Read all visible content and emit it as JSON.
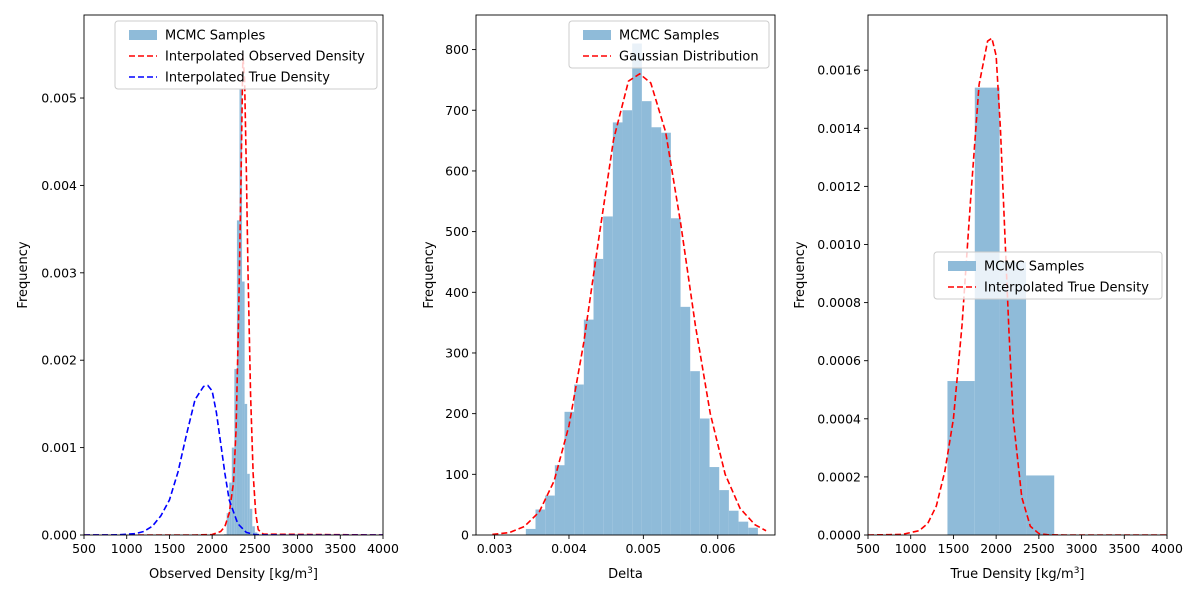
{
  "chart_data": [
    {
      "type": "histogram",
      "xlabel_main": "Observed Density [kg/m",
      "xlabel_sup": "3",
      "xlabel_end": "]",
      "ylabel": "Frequency",
      "xlim": [
        500,
        4000
      ],
      "ylim": [
        0,
        0.00595
      ],
      "xticks": [
        500,
        1000,
        1500,
        2000,
        2500,
        3000,
        3500,
        4000
      ],
      "yticks": [
        0.0,
        0.001,
        0.002,
        0.003,
        0.004,
        0.005
      ],
      "ytick_labels": [
        "0.000",
        "0.001",
        "0.002",
        "0.003",
        "0.004",
        "0.005"
      ],
      "legend": {
        "placement": "upper-center",
        "entries": [
          "MCMC Samples",
          "Interpolated Observed Density",
          "Interpolated True Density"
        ]
      },
      "histogram": {
        "name": "MCMC Samples",
        "color": "#8fbbd9",
        "bin_edges": [
          2140,
          2170,
          2200,
          2230,
          2260,
          2290,
          2320,
          2350,
          2380,
          2410,
          2440,
          2470,
          2500,
          2530
        ],
        "values": [
          1e-05,
          0.00025,
          0.0006,
          0.001,
          0.0019,
          0.0036,
          0.0051,
          0.0029,
          0.0015,
          0.0007,
          0.0003,
          0.0001,
          3e-05
        ]
      },
      "curves": [
        {
          "name": "Interpolated Observed Density",
          "color": "#ff0000",
          "style": "dashed",
          "x": [
            500,
            1800,
            2000,
            2100,
            2150,
            2200,
            2250,
            2280,
            2310,
            2340,
            2360,
            2380,
            2400,
            2420,
            2450,
            2480,
            2510,
            2540,
            2600,
            4000
          ],
          "y": [
            0,
            0,
            5e-06,
            4e-05,
            0.0001,
            0.00025,
            0.0006,
            0.0012,
            0.0025,
            0.0042,
            0.0055,
            0.0052,
            0.0042,
            0.003,
            0.0016,
            0.0007,
            0.00025,
            6e-05,
            1e-05,
            0
          ]
        },
        {
          "name": "Interpolated True Density",
          "color": "#0000ff",
          "style": "dashed",
          "x": [
            500,
            900,
            1100,
            1200,
            1300,
            1400,
            1500,
            1600,
            1700,
            1800,
            1900,
            1950,
            2000,
            2050,
            2100,
            2150,
            2200,
            2300,
            2400,
            2500,
            2600,
            2800,
            4000
          ],
          "y": [
            0,
            2e-06,
            1.5e-05,
            4e-05,
            0.0001,
            0.00022,
            0.0004,
            0.00072,
            0.00115,
            0.00155,
            0.0017,
            0.00171,
            0.00165,
            0.0014,
            0.00105,
            0.0007,
            0.0004,
            0.00013,
            3e-05,
            5e-06,
            1e-06,
            0,
            0
          ]
        }
      ]
    },
    {
      "type": "histogram",
      "xlabel_main": "Delta",
      "ylabel": "Frequency",
      "xlim": [
        0.00275,
        0.00677
      ],
      "ylim": [
        0,
        857
      ],
      "xticks": [
        0.003,
        0.004,
        0.005,
        0.006
      ],
      "xtick_labels": [
        "0.003",
        "0.004",
        "0.005",
        "0.006"
      ],
      "yticks": [
        0,
        100,
        200,
        300,
        400,
        500,
        600,
        700,
        800
      ],
      "ytick_labels": [
        "0",
        "100",
        "200",
        "300",
        "400",
        "500",
        "600",
        "700",
        "800"
      ],
      "legend": {
        "placement": "upper-right",
        "entries": [
          "MCMC Samples",
          "Gaussian Distribution"
        ]
      },
      "histogram": {
        "name": "MCMC Samples",
        "color": "#8fbbd9",
        "bin_edges": [
          0.00342,
          0.00355,
          0.00368,
          0.00381,
          0.00394,
          0.00407,
          0.0042,
          0.00433,
          0.00446,
          0.00459,
          0.00472,
          0.00485,
          0.00498,
          0.00511,
          0.00524,
          0.00537,
          0.0055,
          0.00563,
          0.00576,
          0.00589,
          0.00602,
          0.00615,
          0.00628,
          0.00641,
          0.00654
        ],
        "values": [
          10,
          42,
          65,
          115,
          203,
          248,
          355,
          455,
          525,
          680,
          700,
          810,
          715,
          672,
          663,
          522,
          376,
          270,
          192,
          112,
          74,
          40,
          22,
          12
        ]
      },
      "curves": [
        {
          "name": "Gaussian Distribution",
          "color": "#ff0000",
          "style": "dashed",
          "x": [
            0.00297,
            0.0032,
            0.0034,
            0.0036,
            0.0038,
            0.004,
            0.0042,
            0.0044,
            0.0046,
            0.0048,
            0.00495,
            0.0051,
            0.0053,
            0.0055,
            0.0057,
            0.0059,
            0.0061,
            0.0063,
            0.0065,
            0.00665
          ],
          "y": [
            1,
            4,
            14,
            38,
            89,
            180,
            318,
            488,
            652,
            748,
            760,
            745,
            664,
            515,
            345,
            200,
            100,
            44,
            17,
            7
          ]
        }
      ]
    },
    {
      "type": "histogram",
      "xlabel_main": "True Density [kg/m",
      "xlabel_sup": "3",
      "xlabel_end": "]",
      "ylabel": "Frequency",
      "xlim": [
        500,
        4000
      ],
      "ylim": [
        0,
        0.00179
      ],
      "xticks": [
        500,
        1000,
        1500,
        2000,
        2500,
        3000,
        3500,
        4000
      ],
      "yticks": [
        0.0,
        0.0002,
        0.0004,
        0.0006,
        0.0008,
        0.001,
        0.0012,
        0.0014,
        0.0016
      ],
      "ytick_labels": [
        "0.0000",
        "0.0002",
        "0.0004",
        "0.0006",
        "0.0008",
        "0.0010",
        "0.0012",
        "0.0014",
        "0.0016"
      ],
      "legend": {
        "placement": "center-right",
        "entries": [
          "MCMC Samples",
          "Interpolated True Density"
        ]
      },
      "histogram": {
        "name": "MCMC Samples",
        "color": "#8fbbd9",
        "bin_edges": [
          1430,
          1750,
          2040,
          2350,
          2680
        ],
        "values": [
          0.00053,
          0.00154,
          0.00094,
          0.000205
        ]
      },
      "curves": [
        {
          "name": "Interpolated True Density",
          "color": "#ff0000",
          "style": "dashed",
          "x": [
            500,
            900,
            1100,
            1200,
            1300,
            1400,
            1500,
            1600,
            1700,
            1800,
            1900,
            1950,
            2000,
            2050,
            2100,
            2150,
            2200,
            2300,
            2400,
            2500,
            2600,
            2800,
            4000
          ],
          "y": [
            0,
            2e-06,
            1.5e-05,
            4e-05,
            0.0001,
            0.00022,
            0.0004,
            0.00072,
            0.00115,
            0.00155,
            0.0017,
            0.00171,
            0.00165,
            0.0014,
            0.00105,
            0.0007,
            0.0004,
            0.00013,
            3e-05,
            5e-06,
            1e-06,
            0,
            0
          ]
        }
      ]
    }
  ]
}
